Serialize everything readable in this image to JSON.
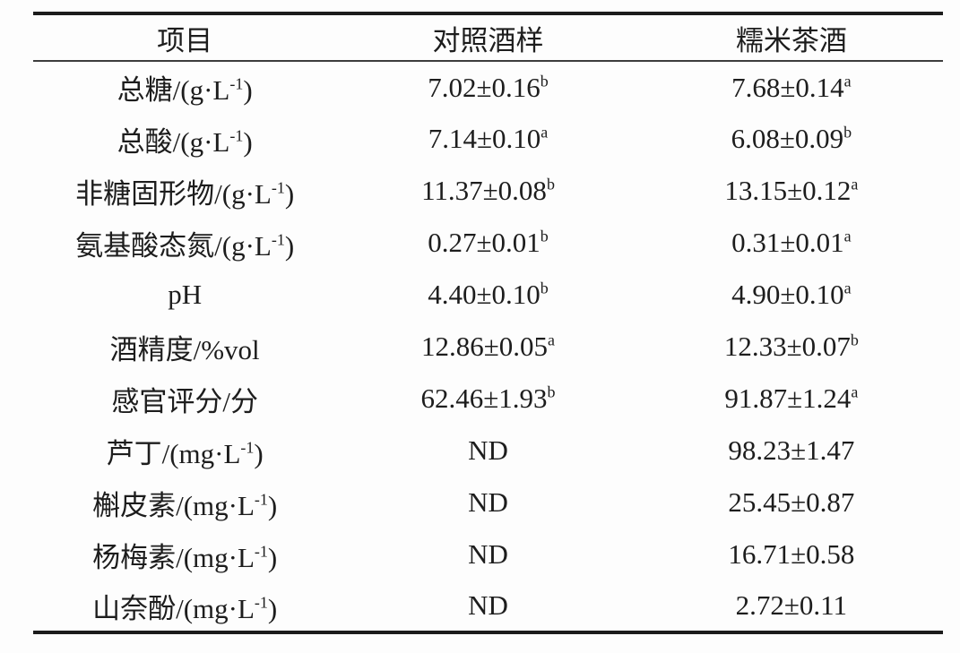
{
  "page": {
    "background": "#fdfdfd",
    "text_color": "#1d1d1d",
    "rule_color": "#1c1c1c"
  },
  "table": {
    "headers": [
      {
        "key": "item",
        "label": "项目"
      },
      {
        "key": "control",
        "label": "对照酒样"
      },
      {
        "key": "tea",
        "label": "糯米茶酒"
      }
    ],
    "rows": [
      {
        "item": {
          "text": "总糖/(g·L",
          "sup": "-1",
          "tail": ")"
        },
        "control": {
          "text": "7.02±0.16",
          "sup": "b"
        },
        "tea": {
          "text": "7.68±0.14",
          "sup": "a"
        }
      },
      {
        "item": {
          "text": "总酸/(g·L",
          "sup": "-1",
          "tail": ")"
        },
        "control": {
          "text": "7.14±0.10",
          "sup": "a"
        },
        "tea": {
          "text": "6.08±0.09",
          "sup": "b"
        }
      },
      {
        "item": {
          "text": "非糖固形物/(g·L",
          "sup": "-1",
          "tail": ")"
        },
        "control": {
          "text": "11.37±0.08",
          "sup": "b"
        },
        "tea": {
          "text": "13.15±0.12",
          "sup": "a"
        }
      },
      {
        "item": {
          "text": "氨基酸态氮/(g·L",
          "sup": "-1",
          "tail": ")"
        },
        "control": {
          "text": "0.27±0.01",
          "sup": "b"
        },
        "tea": {
          "text": "0.31±0.01",
          "sup": "a"
        }
      },
      {
        "item": {
          "text": "pH",
          "sup": "",
          "tail": ""
        },
        "control": {
          "text": "4.40±0.10",
          "sup": "b"
        },
        "tea": {
          "text": "4.90±0.10",
          "sup": "a"
        }
      },
      {
        "item": {
          "text": "酒精度/%vol",
          "sup": "",
          "tail": ""
        },
        "control": {
          "text": "12.86±0.05",
          "sup": "a"
        },
        "tea": {
          "text": "12.33±0.07",
          "sup": "b"
        }
      },
      {
        "item": {
          "text": "感官评分/分",
          "sup": "",
          "tail": ""
        },
        "control": {
          "text": "62.46±1.93",
          "sup": "b"
        },
        "tea": {
          "text": "91.87±1.24",
          "sup": "a"
        }
      },
      {
        "item": {
          "text": "芦丁/(mg·L",
          "sup": "-1",
          "tail": ")"
        },
        "control": {
          "text": "ND",
          "sup": ""
        },
        "tea": {
          "text": "98.23±1.47",
          "sup": ""
        }
      },
      {
        "item": {
          "text": "槲皮素/(mg·L",
          "sup": "-1",
          "tail": ")"
        },
        "control": {
          "text": "ND",
          "sup": ""
        },
        "tea": {
          "text": "25.45±0.87",
          "sup": ""
        }
      },
      {
        "item": {
          "text": "杨梅素/(mg·L",
          "sup": "-1",
          "tail": ")"
        },
        "control": {
          "text": "ND",
          "sup": ""
        },
        "tea": {
          "text": "16.71±0.58",
          "sup": ""
        }
      },
      {
        "item": {
          "text": "山奈酚/(mg·L",
          "sup": "-1",
          "tail": ")"
        },
        "control": {
          "text": "ND",
          "sup": ""
        },
        "tea": {
          "text": "2.72±0.11",
          "sup": ""
        }
      }
    ]
  }
}
